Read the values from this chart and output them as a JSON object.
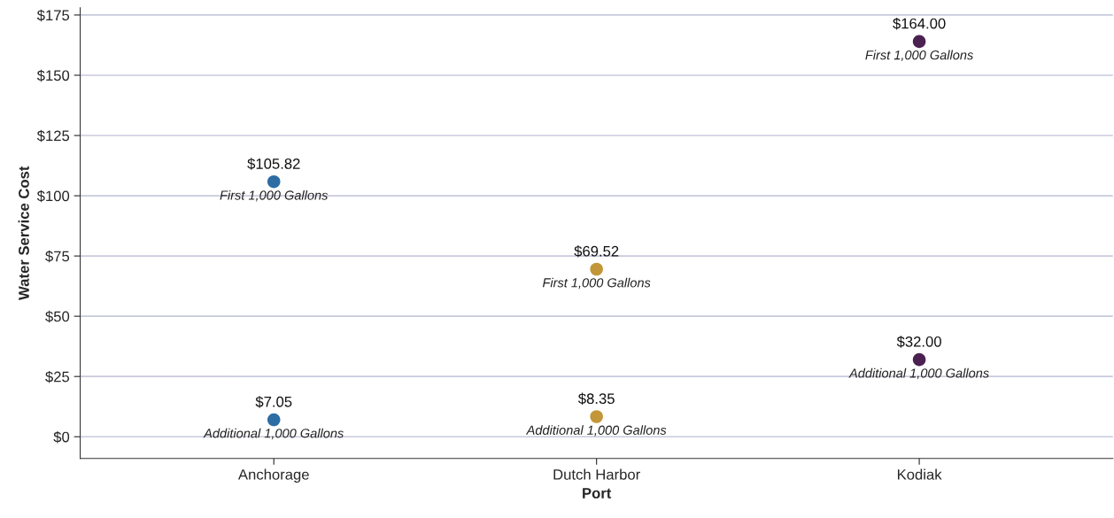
{
  "chart_data": {
    "type": "scatter",
    "xlabel": "Port",
    "ylabel": "Water Service Cost",
    "categories": [
      "Anchorage",
      "Dutch Harbor",
      "Kodiak"
    ],
    "series": [
      {
        "name": "First 1,000 Gallons",
        "colors": [
          "#2e6da4",
          "#c3963a",
          "#4b2151"
        ],
        "values": [
          105.82,
          69.52,
          164.0
        ],
        "value_labels": [
          "$105.82",
          "$69.52",
          "$164.00"
        ]
      },
      {
        "name": "Additional 1,000 Gallons",
        "colors": [
          "#2e6da4",
          "#c3963a",
          "#4b2151"
        ],
        "values": [
          7.05,
          8.35,
          32.0
        ],
        "value_labels": [
          "$7.05",
          "$8.35",
          "$32.00"
        ]
      }
    ],
    "ylim": [
      -9,
      178
    ],
    "yticks": [
      {
        "value": 0,
        "label": "$0"
      },
      {
        "value": 25,
        "label": "$25"
      },
      {
        "value": 50,
        "label": "$50"
      },
      {
        "value": 75,
        "label": "$75"
      },
      {
        "value": 100,
        "label": "$100"
      },
      {
        "value": 125,
        "label": "$125"
      },
      {
        "value": 150,
        "label": "$150"
      },
      {
        "value": 175,
        "label": "$175"
      }
    ],
    "grid": "y",
    "marker": "circle",
    "legend": false
  }
}
